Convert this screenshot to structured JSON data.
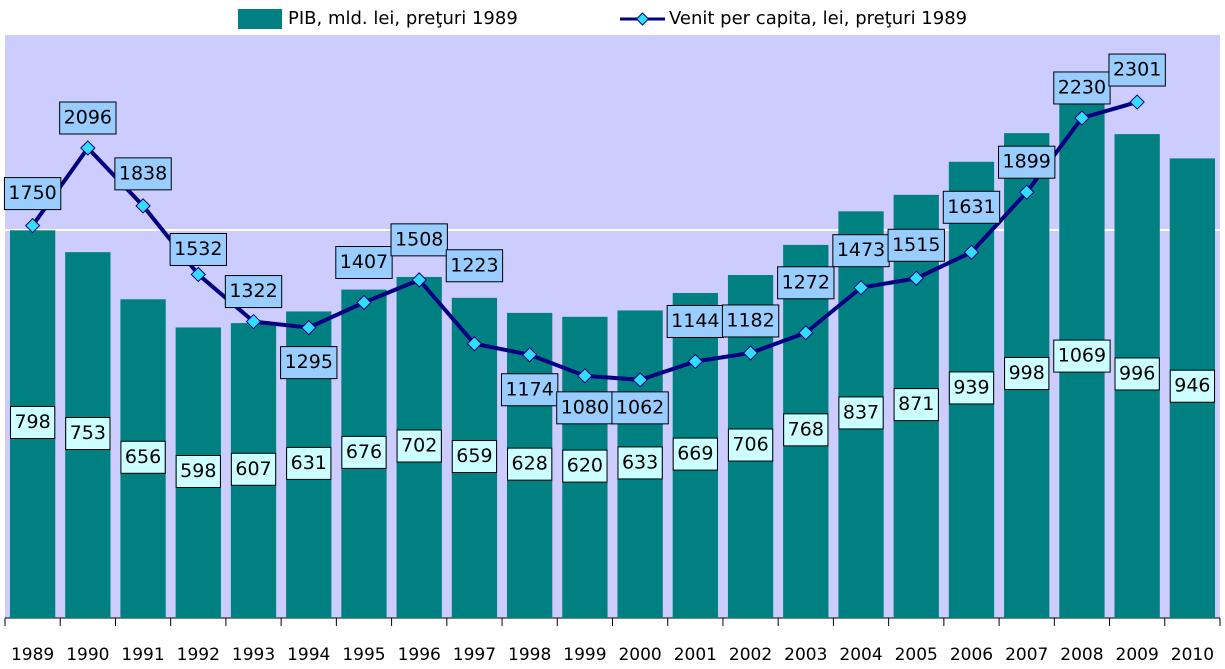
{
  "chart_data": {
    "type": "bar+line",
    "categories": [
      "1989",
      "1990",
      "1991",
      "1992",
      "1993",
      "1994",
      "1995",
      "1996",
      "1997",
      "1998",
      "1999",
      "2000",
      "2001",
      "2002",
      "2003",
      "2004",
      "2005",
      "2006",
      "2007",
      "2008",
      "2009",
      "2010"
    ],
    "series": [
      {
        "name": "PIB, mld. lei, preţuri 1989",
        "type": "bar",
        "color": "#008080",
        "values": [
          798,
          753,
          656,
          598,
          607,
          631,
          676,
          702,
          659,
          628,
          620,
          633,
          669,
          706,
          768,
          837,
          871,
          939,
          998,
          1069,
          996,
          946
        ]
      },
      {
        "name": "Venit per capita, lei, preţuri 1989",
        "type": "line",
        "axis": "y2",
        "color": "#000080",
        "marker_color": "#33ddff",
        "values": [
          1750,
          2096,
          1838,
          1532,
          1322,
          1295,
          1407,
          1508,
          1223,
          1174,
          1080,
          1062,
          1144,
          1182,
          1272,
          1473,
          1515,
          1631,
          1899,
          2230,
          2301,
          null
        ]
      }
    ],
    "ylim": [
      0,
      1200
    ],
    "y2lim": [
      0,
      2600
    ],
    "legend": "top"
  }
}
